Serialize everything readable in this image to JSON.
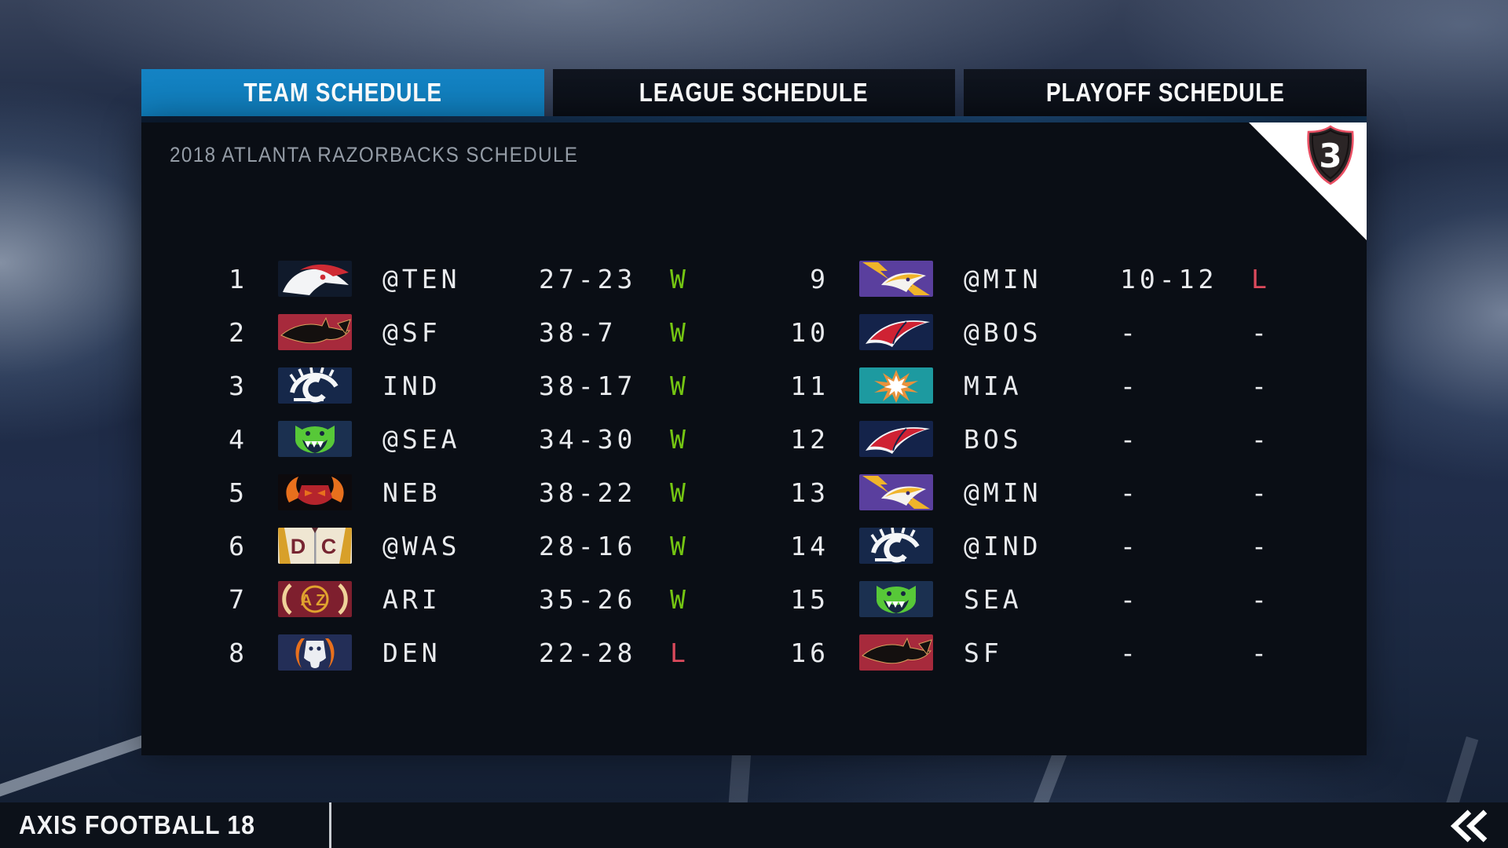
{
  "tabs": [
    {
      "label": "TEAM SCHEDULE",
      "active": true
    },
    {
      "label": "LEAGUE SCHEDULE",
      "active": false
    },
    {
      "label": "PLAYOFF SCHEDULE",
      "active": false
    }
  ],
  "header": {
    "title": "2018 ATLANTA RAZORBACKS SCHEDULE",
    "badge": "3"
  },
  "schedule": {
    "games": [
      {
        "week": "1",
        "opponent": "@TEN",
        "score": "27-23",
        "result": "W",
        "logo": "TEN"
      },
      {
        "week": "2",
        "opponent": "@SF",
        "score": "38-7",
        "result": "W",
        "logo": "SF"
      },
      {
        "week": "3",
        "opponent": "IND",
        "score": "38-17",
        "result": "W",
        "logo": "IND"
      },
      {
        "week": "4",
        "opponent": "@SEA",
        "score": "34-30",
        "result": "W",
        "logo": "SEA"
      },
      {
        "week": "5",
        "opponent": "NEB",
        "score": "38-22",
        "result": "W",
        "logo": "NEB"
      },
      {
        "week": "6",
        "opponent": "@WAS",
        "score": "28-16",
        "result": "W",
        "logo": "WAS"
      },
      {
        "week": "7",
        "opponent": "ARI",
        "score": "35-26",
        "result": "W",
        "logo": "ARI"
      },
      {
        "week": "8",
        "opponent": "DEN",
        "score": "22-28",
        "result": "L",
        "logo": "DEN"
      },
      {
        "week": "9",
        "opponent": "@MIN",
        "score": "10-12",
        "result": "L",
        "logo": "MIN"
      },
      {
        "week": "10",
        "opponent": "@BOS",
        "score": "-",
        "result": "-",
        "logo": "BOS"
      },
      {
        "week": "11",
        "opponent": "MIA",
        "score": "-",
        "result": "-",
        "logo": "MIA"
      },
      {
        "week": "12",
        "opponent": "BOS",
        "score": "-",
        "result": "-",
        "logo": "BOS"
      },
      {
        "week": "13",
        "opponent": "@MIN",
        "score": "-",
        "result": "-",
        "logo": "MIN"
      },
      {
        "week": "14",
        "opponent": "@IND",
        "score": "-",
        "result": "-",
        "logo": "IND"
      },
      {
        "week": "15",
        "opponent": "SEA",
        "score": "-",
        "result": "-",
        "logo": "SEA"
      },
      {
        "week": "16",
        "opponent": "SF",
        "score": "-",
        "result": "-",
        "logo": "SF"
      }
    ]
  },
  "logos": {
    "TEN": {
      "bg": "#101a2b",
      "colors": [
        "#f3f4f6",
        "#cf2b34"
      ]
    },
    "SF": {
      "bg": "#a72a3c",
      "colors": [
        "#14100f",
        "#d9a05c"
      ]
    },
    "IND": {
      "bg": "#16284a",
      "colors": [
        "#f4f6f8",
        "#f4f6f8"
      ]
    },
    "SEA": {
      "bg": "#1b3050",
      "colors": [
        "#57c838",
        "#ffffff"
      ]
    },
    "NEB": {
      "bg": "#0d0a0d",
      "colors": [
        "#e8701d",
        "#b5242c"
      ]
    },
    "WAS": {
      "bg": "#efe6d2",
      "colors": [
        "#772531",
        "#d8a02a"
      ]
    },
    "ARI": {
      "bg": "#7e1f2e",
      "colors": [
        "#e0a32e",
        "#f0d29a"
      ]
    },
    "DEN": {
      "bg": "#232e57",
      "colors": [
        "#eceef2",
        "#e8701d"
      ]
    },
    "MIN": {
      "bg": "#5a3f9e",
      "colors": [
        "#f0b42a",
        "#f5f3ef"
      ]
    },
    "BOS": {
      "bg": "#14234a",
      "colors": [
        "#cf2233",
        "#f4f5f7"
      ]
    },
    "MIA": {
      "bg": "#1d9aa0",
      "colors": [
        "#ffffff",
        "#e8923c"
      ]
    }
  },
  "footer": {
    "title": "AXIS FOOTBALL 18",
    "back_icon": "double-chevron-left-icon"
  },
  "colors": {
    "tab_active": "#1483c4",
    "win": "#74c512",
    "loss": "#dc4a5c",
    "badge_outline": "#e94f63",
    "badge_fill": "#2b2526"
  }
}
